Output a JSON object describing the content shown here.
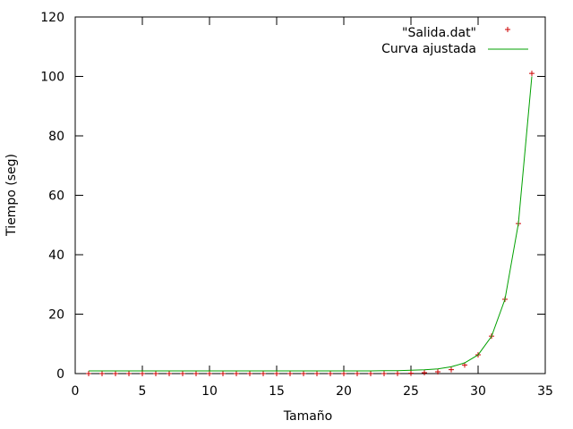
{
  "chart_data": {
    "type": "scatter",
    "title": "",
    "xlabel": "Tamaño",
    "ylabel": "Tiempo (seg)",
    "xlim": [
      0,
      35
    ],
    "ylim": [
      0,
      120
    ],
    "xticks": [
      0,
      5,
      10,
      15,
      20,
      25,
      30,
      35
    ],
    "yticks": [
      0,
      20,
      40,
      60,
      80,
      100,
      120
    ],
    "grid": false,
    "legend": "top-right",
    "series": [
      {
        "name": "\"Salida.dat\"",
        "style": "points",
        "marker": "plus",
        "color": "#cc0000",
        "x": [
          1,
          2,
          3,
          4,
          5,
          6,
          7,
          8,
          9,
          10,
          11,
          12,
          13,
          14,
          15,
          16,
          17,
          18,
          19,
          20,
          21,
          22,
          23,
          24,
          25,
          26,
          27,
          28,
          29,
          30,
          31,
          32,
          33,
          34
        ],
        "y": [
          0,
          0,
          0,
          0,
          0,
          0,
          0,
          0,
          0,
          0,
          0,
          0,
          0,
          0,
          0,
          0,
          0,
          0,
          0,
          0,
          0,
          0,
          0,
          0.05,
          0.1,
          0.3,
          0.6,
          1.3,
          2.9,
          6.3,
          12.6,
          25,
          50.5,
          101
        ]
      },
      {
        "name": "Curva ajustada",
        "style": "line",
        "color": "#00a000",
        "x": [
          1,
          2,
          3,
          4,
          5,
          6,
          7,
          8,
          9,
          10,
          11,
          12,
          13,
          14,
          15,
          16,
          17,
          18,
          19,
          20,
          21,
          22,
          23,
          24,
          25,
          26,
          27,
          28,
          29,
          30,
          31,
          32,
          33,
          34
        ],
        "y": [
          0.9,
          0.9,
          0.9,
          0.9,
          0.9,
          0.9,
          0.9,
          0.9,
          0.9,
          0.9,
          0.9,
          0.9,
          0.9,
          0.9,
          0.9,
          0.9,
          0.9,
          0.9,
          0.9,
          0.9,
          0.9,
          0.9,
          0.95,
          1.0,
          1.1,
          1.3,
          1.6,
          2.3,
          3.6,
          6.3,
          12.5,
          25,
          50.5,
          100
        ]
      }
    ]
  }
}
